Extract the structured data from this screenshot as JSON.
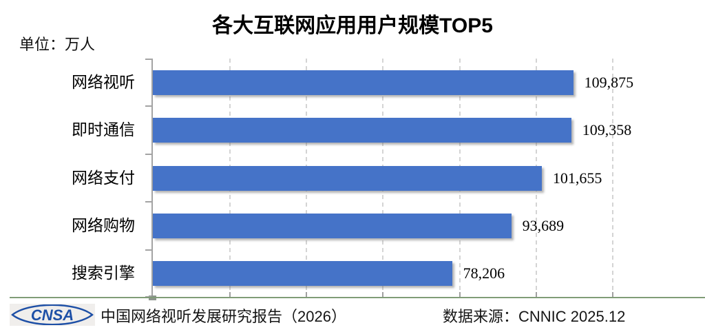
{
  "title": "各大互联网应用用户规模TOP5",
  "unit_label": "单位：万人",
  "chart_data": {
    "type": "bar",
    "orientation": "horizontal",
    "title": "各大互联网应用用户规模TOP5",
    "unit": "万人",
    "categories": [
      "网络视听",
      "即时通信",
      "网络支付",
      "网络购物",
      "搜索引擎"
    ],
    "values": [
      109875,
      109358,
      101655,
      93689,
      78206
    ],
    "value_labels": [
      "109,875",
      "109,358",
      "101,655",
      "93,689",
      "78,206"
    ],
    "xlim": [
      0,
      140000
    ],
    "gridline_values": [
      20000,
      40000,
      60000,
      80000,
      100000,
      120000
    ],
    "grid": "vertical-dashed",
    "legend": "none",
    "bar_color": "#4573C8",
    "axis_color": "#a3a3a3",
    "gridline_color": "#d4d4d4"
  },
  "footer": {
    "logo_text": "CNSA",
    "logo_color": "#1d4fa6",
    "report_label": "中国网络视听发展研究报告（2026）",
    "source_label": "数据来源：CNNIC 2025.12",
    "divider_color": "#809c77"
  }
}
